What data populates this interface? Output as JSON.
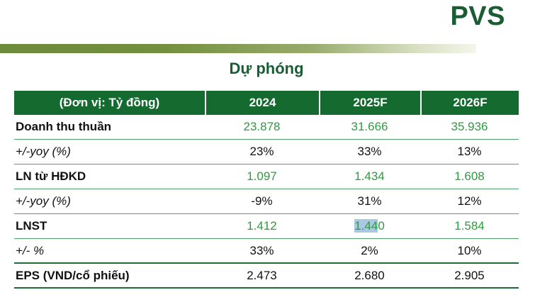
{
  "brand": {
    "logo_text": "PVS"
  },
  "title": "Dự phóng",
  "colors": {
    "brand_green": "#1a5c34",
    "header_bg": "#156b2f",
    "value_green": "#2e9b3f",
    "row_line_green": "#4ea267",
    "dark_line_green": "#1d6b35",
    "gradient_bar_left": "#6d8b3c",
    "selection_highlight": "#a9c8e1"
  },
  "table": {
    "unit_header": "(Đơn vị: Tỷ đồng)",
    "columns": [
      "2024",
      "2025F",
      "2026F"
    ],
    "rows": [
      {
        "label": "Doanh thu thuần",
        "values": [
          "23.878",
          "31.666",
          "35.936"
        ],
        "value_color": "green"
      },
      {
        "label": "+/-yoy (%)",
        "values": [
          "23%",
          "33%",
          "13%"
        ],
        "value_color": "black"
      },
      {
        "label": "LN từ HĐKD",
        "values": [
          "1.097",
          "1.434",
          "1.608"
        ],
        "value_color": "green"
      },
      {
        "label": "+/-yoy (%)",
        "values": [
          "-9%",
          "31%",
          "12%"
        ],
        "value_color": "black"
      },
      {
        "label": "LNST",
        "values": [
          "1.412",
          "1.440",
          "1.584"
        ],
        "value_color": "green",
        "highlight": {
          "column_index": 1,
          "prefix": "1.44",
          "suffix": "0"
        }
      },
      {
        "label": "+/- %",
        "values": [
          "33%",
          "2%",
          "10%"
        ],
        "value_color": "black"
      },
      {
        "label": "EPS (VND/cổ phiếu)",
        "values": [
          "2.473",
          "2.680",
          "2.905"
        ],
        "value_color": "black"
      }
    ]
  }
}
